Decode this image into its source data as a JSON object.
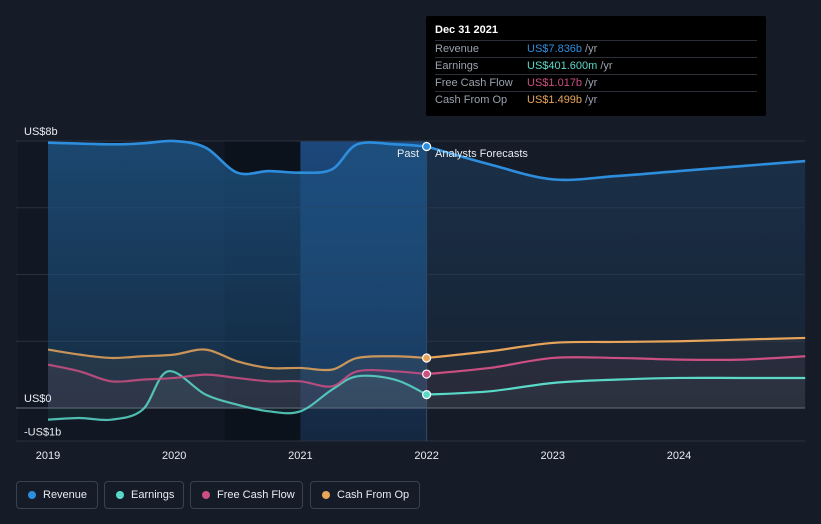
{
  "chart_data": {
    "type": "line",
    "x_ticks": [
      "2019",
      "2020",
      "2021",
      "2022",
      "2023",
      "2024"
    ],
    "y_ticks": [
      "US$8b",
      "US$0",
      "-US$1b"
    ],
    "ylim": [
      -1,
      8
    ],
    "split_labels": {
      "past": "Past",
      "forecast": "Analysts Forecasts"
    },
    "series": [
      {
        "name": "Revenue",
        "color": "#2e8ede",
        "points": [
          [
            2019.0,
            7.95
          ],
          [
            2019.5,
            7.9
          ],
          [
            2019.75,
            7.93
          ],
          [
            2020.0,
            8.0
          ],
          [
            2020.25,
            7.8
          ],
          [
            2020.5,
            7.05
          ],
          [
            2020.75,
            7.1
          ],
          [
            2021.0,
            7.05
          ],
          [
            2021.25,
            7.15
          ],
          [
            2021.45,
            7.9
          ],
          [
            2021.75,
            7.9
          ],
          [
            2022.0,
            7.836
          ],
          [
            2022.5,
            7.3
          ],
          [
            2023.0,
            6.85
          ],
          [
            2023.5,
            6.95
          ],
          [
            2024.0,
            7.1
          ],
          [
            2024.5,
            7.25
          ],
          [
            2025.0,
            7.4
          ]
        ]
      },
      {
        "name": "Earnings",
        "color": "#5ad9c9",
        "points": [
          [
            2019.0,
            -0.35
          ],
          [
            2019.25,
            -0.3
          ],
          [
            2019.5,
            -0.35
          ],
          [
            2019.75,
            -0.05
          ],
          [
            2019.95,
            1.1
          ],
          [
            2020.25,
            0.4
          ],
          [
            2020.5,
            0.1
          ],
          [
            2020.75,
            -0.1
          ],
          [
            2021.0,
            -0.1
          ],
          [
            2021.25,
            0.55
          ],
          [
            2021.45,
            0.95
          ],
          [
            2021.75,
            0.85
          ],
          [
            2022.0,
            0.4016
          ],
          [
            2022.5,
            0.5
          ],
          [
            2023.0,
            0.75
          ],
          [
            2023.5,
            0.85
          ],
          [
            2024.0,
            0.9
          ],
          [
            2024.5,
            0.9
          ],
          [
            2025.0,
            0.9
          ]
        ]
      },
      {
        "name": "Free Cash Flow",
        "color": "#cc4f82",
        "points": [
          [
            2019.0,
            1.3
          ],
          [
            2019.25,
            1.1
          ],
          [
            2019.5,
            0.8
          ],
          [
            2019.75,
            0.85
          ],
          [
            2020.0,
            0.9
          ],
          [
            2020.25,
            1.0
          ],
          [
            2020.5,
            0.9
          ],
          [
            2020.75,
            0.8
          ],
          [
            2021.0,
            0.8
          ],
          [
            2021.25,
            0.65
          ],
          [
            2021.45,
            1.1
          ],
          [
            2021.75,
            1.1
          ],
          [
            2022.0,
            1.017
          ],
          [
            2022.5,
            1.2
          ],
          [
            2023.0,
            1.5
          ],
          [
            2023.5,
            1.5
          ],
          [
            2024.0,
            1.45
          ],
          [
            2024.5,
            1.45
          ],
          [
            2025.0,
            1.55
          ]
        ]
      },
      {
        "name": "Cash From Op",
        "color": "#e8a55a",
        "points": [
          [
            2019.0,
            1.75
          ],
          [
            2019.25,
            1.6
          ],
          [
            2019.5,
            1.5
          ],
          [
            2019.75,
            1.55
          ],
          [
            2020.0,
            1.6
          ],
          [
            2020.25,
            1.75
          ],
          [
            2020.5,
            1.4
          ],
          [
            2020.75,
            1.2
          ],
          [
            2021.0,
            1.2
          ],
          [
            2021.25,
            1.15
          ],
          [
            2021.45,
            1.5
          ],
          [
            2021.75,
            1.55
          ],
          [
            2022.0,
            1.499
          ],
          [
            2022.5,
            1.7
          ],
          [
            2023.0,
            1.95
          ],
          [
            2023.5,
            1.98
          ],
          [
            2024.0,
            2.0
          ],
          [
            2024.5,
            2.05
          ],
          [
            2025.0,
            2.1
          ]
        ]
      }
    ]
  },
  "tooltip": {
    "date": "Dec 31 2021",
    "rows": [
      {
        "name": "Revenue",
        "value": "US$7.836b",
        "unit": "/yr",
        "color": "#2e8ede"
      },
      {
        "name": "Earnings",
        "value": "US$401.600m",
        "unit": "/yr",
        "color": "#5ad9c9"
      },
      {
        "name": "Free Cash Flow",
        "value": "US$1.017b",
        "unit": "/yr",
        "color": "#cc4f82"
      },
      {
        "name": "Cash From Op",
        "value": "US$1.499b",
        "unit": "/yr",
        "color": "#e8a55a"
      }
    ]
  },
  "legend": [
    {
      "label": "Revenue",
      "color": "#2e8ede"
    },
    {
      "label": "Earnings",
      "color": "#5ad9c9"
    },
    {
      "label": "Free Cash Flow",
      "color": "#cc4f82"
    },
    {
      "label": "Cash From Op",
      "color": "#e8a55a"
    }
  ]
}
